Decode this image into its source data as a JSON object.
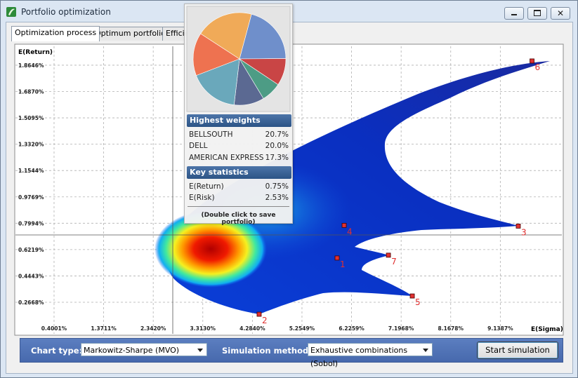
{
  "window": {
    "title": "Portfolio optimization"
  },
  "tabs": [
    "Optimization process",
    "Optimum portfolios",
    "Efficient frontier"
  ],
  "chart_data": {
    "type": "scatter",
    "y_label": "E(Return)",
    "x_label": "E(Sigma)",
    "xlim": [
      -0.356,
      10.344
    ],
    "ylim": [
      0.054,
      1.992
    ],
    "xticks": [
      {
        "value": 0.4001,
        "label": "0.4001%"
      },
      {
        "value": 1.3711,
        "label": "1.3711%"
      },
      {
        "value": 2.342,
        "label": "2.3420%"
      },
      {
        "value": 3.313,
        "label": "3.3130%"
      },
      {
        "value": 4.284,
        "label": "4.2840%"
      },
      {
        "value": 5.2549,
        "label": "5.2549%"
      },
      {
        "value": 6.2259,
        "label": "6.2259%"
      },
      {
        "value": 7.1968,
        "label": "7.1968%"
      },
      {
        "value": 8.1678,
        "label": "8.1678%"
      },
      {
        "value": 9.1387,
        "label": "9.1387%"
      }
    ],
    "yticks": [
      {
        "value": 1.8646,
        "label": "1.8646%"
      },
      {
        "value": 1.687,
        "label": "1.6870%"
      },
      {
        "value": 1.5095,
        "label": "1.5095%"
      },
      {
        "value": 1.332,
        "label": "1.3320%"
      },
      {
        "value": 1.1544,
        "label": "1.1544%"
      },
      {
        "value": 0.9769,
        "label": "0.9769%"
      },
      {
        "value": 0.7994,
        "label": "0.7994%"
      },
      {
        "value": 0.6219,
        "label": "0.6219%"
      },
      {
        "value": 0.4443,
        "label": "0.4443%"
      },
      {
        "value": 0.2668,
        "label": "0.2668%"
      }
    ],
    "grid": true,
    "points": {
      "labels": [
        "1",
        "2",
        "3",
        "4",
        "5",
        "6",
        "7"
      ],
      "x": [
        5.943,
        4.416,
        9.491,
        6.081,
        7.415,
        9.76,
        6.948
      ],
      "y": [
        0.565,
        0.186,
        0.78,
        0.785,
        0.309,
        1.893,
        0.584
      ],
      "color": "#e03030"
    }
  },
  "popup": {
    "pie": {
      "values": [
        20.7,
        9.5,
        7.0,
        10.5,
        17.3,
        15.0,
        20.0
      ],
      "colors": [
        "#6f8fcb",
        "#c94545",
        "#4d9c85",
        "#5b6992",
        "#6aa8bb",
        "#ee7250",
        "#f0aa58"
      ]
    },
    "highest_weights": {
      "title": "Highest weights",
      "rows": [
        [
          "BELLSOUTH",
          "20.7%"
        ],
        [
          "DELL",
          "20.0%"
        ],
        [
          "AMERICAN EXPRESS",
          "17.3%"
        ]
      ]
    },
    "key_statistics": {
      "title": "Key statistics",
      "rows": [
        [
          "E(Return)",
          "0.75%"
        ],
        [
          "E(Risk)",
          "2.53%"
        ]
      ]
    },
    "hint": "(Double click to save portfolio)"
  },
  "toolbar": {
    "chart_type_label": "Chart type:",
    "chart_type": "Markowitz-Sharpe (MVO)",
    "simulation_label": "Simulation method:",
    "simulation": "Exhaustive combinations (Sobol)",
    "button": "Start simulation"
  }
}
